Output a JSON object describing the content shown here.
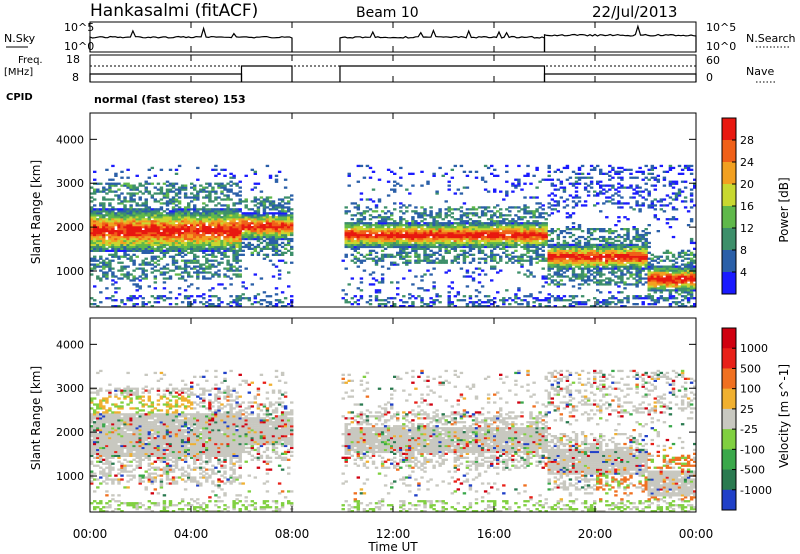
{
  "header": {
    "station": "Hankasalmi (fitACF)",
    "beam": "Beam 10",
    "date": "22/Jul/2013"
  },
  "top_panels": {
    "nsky": {
      "label": "N.Sky",
      "tick_top": "10^5",
      "tick_bottom": "10^0"
    },
    "nsearch": {
      "label": "N.Search",
      "tick_top": "10^5",
      "tick_bottom": "10^0"
    },
    "freq": {
      "label_line1": "Freq.",
      "label_line2": "[MHz]",
      "tick_top": "18",
      "tick_bottom": "8"
    },
    "nave": {
      "label": "Nave",
      "tick_top": "60",
      "tick_bottom": "0"
    },
    "cpid": {
      "label": "CPID",
      "value": "normal (fast stereo) 153"
    }
  },
  "chart_data": [
    {
      "type": "heatmap",
      "title": "",
      "xlabel": "Time UT",
      "ylabel": "Slant Range [km]",
      "x_ticks": [
        "00:00",
        "04:00",
        "08:00",
        "12:00",
        "16:00",
        "20:00",
        "00:00"
      ],
      "y_ticks": [
        "1000",
        "2000",
        "3000",
        "4000"
      ],
      "xlim_hours": [
        0,
        24
      ],
      "ylim_km": [
        180,
        4600
      ],
      "data_gaps_hours": [
        [
          8.0,
          9.9
        ]
      ],
      "colorbar": {
        "label": "Power [dB]",
        "ticks": [
          "4",
          "8",
          "12",
          "16",
          "20",
          "24",
          "28"
        ],
        "colors": [
          "#1a1aff",
          "#2a5fa8",
          "#3d8f6a",
          "#5fb84a",
          "#c8d830",
          "#f2a020",
          "#f06018",
          "#e81810"
        ]
      },
      "echo_bands": [
        {
          "t": [
            0,
            6
          ],
          "range_center": 1900,
          "width": 500,
          "level": "high"
        },
        {
          "t": [
            6,
            8
          ],
          "range_center": 2000,
          "width": 300,
          "level": "medium"
        },
        {
          "t": [
            10,
            18
          ],
          "range_center": 1800,
          "width": 300,
          "level": "high"
        },
        {
          "t": [
            18,
            22
          ],
          "range_center": 1300,
          "width": 300,
          "level": "high"
        },
        {
          "t": [
            22,
            24
          ],
          "range_center": 800,
          "width": 300,
          "level": "very high"
        }
      ]
    },
    {
      "type": "heatmap",
      "title": "",
      "xlabel": "Time UT",
      "ylabel": "Slant Range [km]",
      "x_ticks": [
        "00:00",
        "04:00",
        "08:00",
        "12:00",
        "16:00",
        "20:00",
        "00:00"
      ],
      "y_ticks": [
        "1000",
        "2000",
        "3000",
        "4000"
      ],
      "xlim_hours": [
        0,
        24
      ],
      "ylim_km": [
        180,
        4600
      ],
      "data_gaps_hours": [
        [
          8.0,
          9.9
        ]
      ],
      "colorbar": {
        "label": "Velocity [m s^-1]",
        "ticks": [
          "1000",
          "500",
          "100",
          "25",
          "-25",
          "-100",
          "-500",
          "-1000"
        ],
        "colors": [
          "#2040c8",
          "#2a7a50",
          "#3aa84a",
          "#80d040",
          "#c8c8c0",
          "#f0b030",
          "#f07020",
          "#e82018",
          "#d00010"
        ]
      }
    }
  ]
}
